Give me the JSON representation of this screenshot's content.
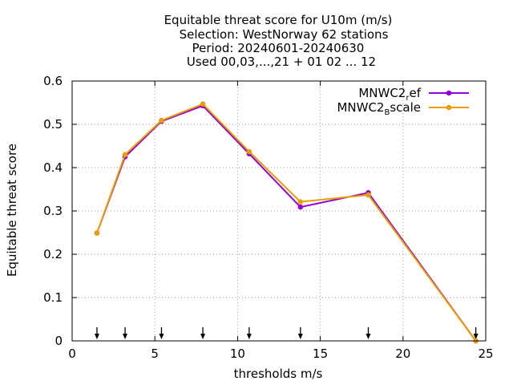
{
  "chart_data": {
    "type": "line",
    "title_lines": [
      "Equitable threat score  for U10m (m/s)",
      "Selection: WestNorway     62 stations",
      "Period: 20240601-20240630",
      "Used 00,03,...,21 + 01 02 ... 12"
    ],
    "xlabel": "thresholds m/s",
    "ylabel": "Equitable threat score",
    "xlim": [
      0,
      25
    ],
    "ylim": [
      0,
      0.6
    ],
    "xticks": [
      0,
      5,
      10,
      15,
      20,
      25
    ],
    "yticks": [
      0,
      0.1,
      0.2,
      0.3,
      0.4,
      0.5,
      0.6
    ],
    "xtick_labels": [
      "0",
      "5",
      "10",
      "15",
      "20",
      "25"
    ],
    "ytick_labels": [
      "0",
      "0.1",
      "0.2",
      "0.3",
      "0.4",
      "0.5",
      "0.6"
    ],
    "grid": true,
    "legend_placement": "top-right",
    "threshold_markers": [
      1.5,
      3.2,
      5.4,
      7.9,
      10.7,
      13.8,
      17.9,
      24.4
    ],
    "series": [
      {
        "name_main": "MNWC2",
        "name_sub": "r",
        "name_rest": "ef",
        "color": "#9400d3",
        "x": [
          1.5,
          3.2,
          5.4,
          7.9,
          10.7,
          13.8,
          17.9,
          24.4
        ],
        "y": [
          0.249,
          0.425,
          0.507,
          0.543,
          0.432,
          0.309,
          0.342,
          0.0
        ]
      },
      {
        "name_main": "MNWC2",
        "name_sub": "B",
        "name_rest": "scale",
        "color": "#e69f00",
        "x": [
          1.5,
          3.2,
          5.4,
          7.9,
          10.7,
          13.8,
          17.9,
          24.4
        ],
        "y": [
          0.249,
          0.43,
          0.509,
          0.547,
          0.437,
          0.321,
          0.337,
          0.0
        ]
      }
    ]
  }
}
